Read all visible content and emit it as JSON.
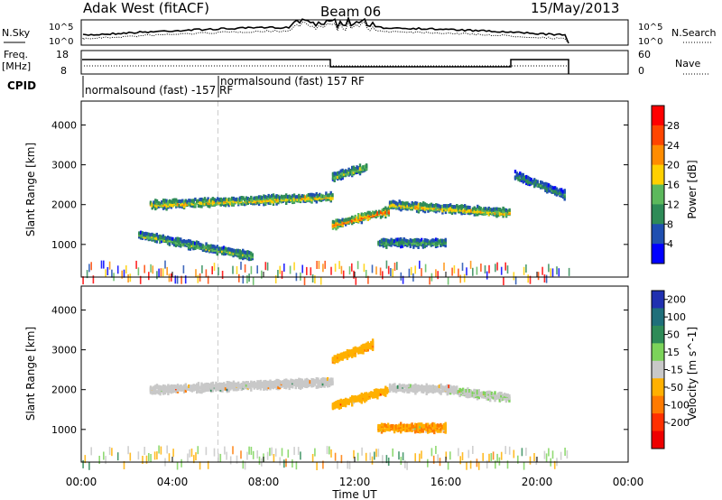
{
  "header": {
    "station": "Adak West (fitACF)",
    "beam": "Beam 06",
    "date": "15/May/2013"
  },
  "panels": {
    "nsky": {
      "left_label": "N.Sky",
      "right_label": "N.Search",
      "left_ticks": [
        "10^5",
        "10^0"
      ],
      "right_ticks": [
        "10^5",
        "10^0"
      ]
    },
    "freq": {
      "left_label_1": "Freq.",
      "left_label_2": "[MHz]",
      "right_label": "Nave",
      "left_ticks": [
        "18",
        "8"
      ],
      "right_ticks": [
        "60",
        "0"
      ]
    },
    "cpid": {
      "label": "CPID",
      "program_a": "normalsound (fast) -157 RF",
      "program_b": "normalsound (fast) 157 RF"
    }
  },
  "chart_data": [
    {
      "type": "heatmap",
      "title": "",
      "ylabel": "Slant Range [km]",
      "xlabel": "",
      "ylim": [
        180,
        4600
      ],
      "xlim": [
        0,
        24
      ],
      "y_ticks": [
        "1000",
        "2000",
        "3000",
        "4000"
      ],
      "colorbar": {
        "label": "Power [dB]",
        "ticks": [
          "4",
          "8",
          "12",
          "16",
          "20",
          "24",
          "28"
        ],
        "range": [
          0,
          30
        ],
        "colors": [
          "#0000ff",
          "#1f4fb0",
          "#2e8b57",
          "#5cb85c",
          "#ffd000",
          "#ff8c00",
          "#ff4500",
          "#ff0000"
        ]
      },
      "echo_bands": [
        {
          "t0": 3.0,
          "t1": 11.0,
          "r_start": 2050,
          "r_end": 2250,
          "level": 18
        },
        {
          "t0": 11.0,
          "t1": 13.5,
          "r_start": 1550,
          "r_end": 1900,
          "level": 24
        },
        {
          "t0": 13.5,
          "t1": 18.8,
          "r_start": 2050,
          "r_end": 1850,
          "level": 18
        },
        {
          "t0": 2.5,
          "t1": 7.5,
          "r_start": 1300,
          "r_end": 750,
          "level": 14
        },
        {
          "t0": 13.0,
          "t1": 16.0,
          "r_start": 1100,
          "r_end": 1100,
          "level": 12
        },
        {
          "t0": 11.0,
          "t1": 12.5,
          "r_start": 2750,
          "r_end": 3000,
          "level": 14
        },
        {
          "t0": 19.0,
          "t1": 21.2,
          "r_start": 2800,
          "r_end": 2300,
          "level": 10
        }
      ]
    },
    {
      "type": "heatmap",
      "title": "",
      "ylabel": "Slant Range [km]",
      "xlabel": "Time UT",
      "ylim": [
        180,
        4600
      ],
      "xlim": [
        0,
        24
      ],
      "y_ticks": [
        "1000",
        "2000",
        "3000",
        "4000"
      ],
      "x_ticks": [
        "00:00",
        "04:00",
        "08:00",
        "12:00",
        "16:00",
        "20:00",
        "00:00"
      ],
      "colorbar": {
        "label": "Velocity [m s^-1]",
        "ticks": [
          "200",
          "100",
          "50",
          "15",
          "-15",
          "-50",
          "-100",
          "-200"
        ],
        "range": [
          -250,
          250
        ],
        "colors": [
          "#2030b0",
          "#1f6f7a",
          "#2e8b57",
          "#7cd35a",
          "#c8c8c8",
          "#ffb000",
          "#ff7a00",
          "#ff3000",
          "#ee0000"
        ]
      },
      "echo_bands": [
        {
          "t0": 3.0,
          "t1": 11.0,
          "r_start": 2050,
          "r_end": 2250,
          "velocity": 0
        },
        {
          "t0": 11.0,
          "t1": 13.5,
          "r_start": 1650,
          "r_end": 2050,
          "velocity": -60
        },
        {
          "t0": 13.5,
          "t1": 16.5,
          "r_start": 2100,
          "r_end": 2050,
          "velocity": 0
        },
        {
          "t0": 16.5,
          "t1": 18.8,
          "r_start": 2000,
          "r_end": 1850,
          "velocity": 20
        },
        {
          "t0": 13.0,
          "t1": 16.0,
          "r_start": 1100,
          "r_end": 1100,
          "velocity": -80
        },
        {
          "t0": 11.0,
          "t1": 12.8,
          "r_start": 2800,
          "r_end": 3200,
          "velocity": -70
        }
      ]
    }
  ]
}
